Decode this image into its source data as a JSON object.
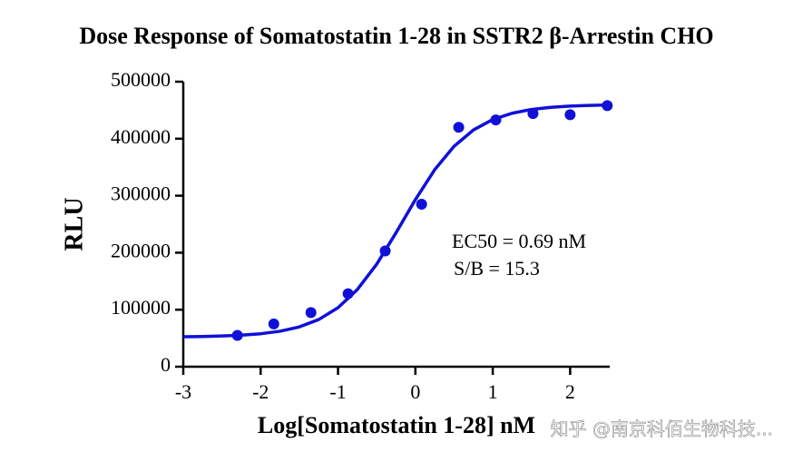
{
  "chart_data": {
    "type": "scatter",
    "title": "Dose Response of Somatostatin 1-28 in SSTR2 β-Arrestin CHO",
    "x_label": "Log[Somatostatin 1-28] nM",
    "y_label": "RLU",
    "annotations": [
      "EC50 = 0.69 nM",
      "S/B = 15.3"
    ],
    "watermark": "知乎 @南京科佰生物科技...",
    "xlim": [
      -3,
      2.5
    ],
    "xticks": [
      -3,
      -2,
      -1,
      0,
      1,
      2
    ],
    "ylim": [
      0,
      500000
    ],
    "yticks": [
      0,
      100000,
      200000,
      300000,
      400000,
      500000
    ],
    "series": [
      {
        "type": "scatter",
        "color": "#1010d8",
        "x": [
          -2.3,
          -1.83,
          -1.35,
          -0.87,
          -0.39,
          0.08,
          0.56,
          1.04,
          1.52,
          2.0,
          2.48
        ],
        "values": [
          55000,
          75000,
          95000,
          128000,
          203000,
          285000,
          420000,
          433000,
          444000,
          442000,
          458000
        ]
      },
      {
        "type": "line",
        "color": "#1010d8",
        "x": [
          -3,
          -2.75,
          -2.5,
          -2.25,
          -2,
          -1.75,
          -1.5,
          -1.25,
          -1,
          -0.75,
          -0.5,
          -0.25,
          0,
          0.25,
          0.5,
          0.75,
          1,
          1.25,
          1.5,
          1.75,
          2,
          2.25,
          2.5
        ],
        "values": [
          52600,
          53000,
          53900,
          55300,
          57800,
          62200,
          69800,
          82700,
          103500,
          135400,
          179900,
          235000,
          293100,
          345700,
          386700,
          415300,
          433600,
          444700,
          451300,
          455000,
          457200,
          458400,
          459100
        ]
      }
    ]
  }
}
